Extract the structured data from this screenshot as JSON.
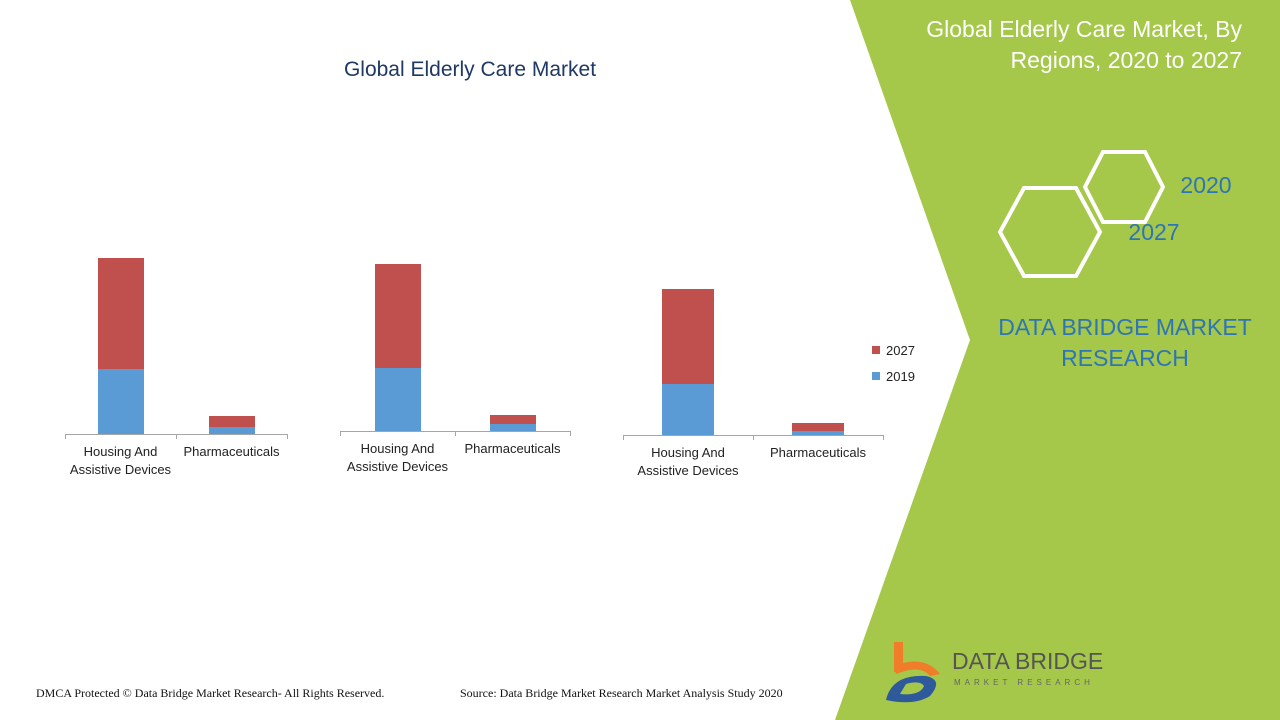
{
  "header": {
    "title": "Global Elderly Care Market",
    "side_title": "Global Elderly Care Market, By Regions, 2020 to 2027",
    "hex_2020": "2020",
    "hex_2027": "2027",
    "brand": "DATA BRIDGE MARKET RESEARCH"
  },
  "footer": {
    "copyright": "DMCA Protected © Data Bridge Market Research- All Rights Reserved.",
    "source": "Source: Data Bridge Market Research Market Analysis Study 2020"
  },
  "logo": {
    "name": "DATA BRIDGE",
    "tagline": "MARKET RESEARCH"
  },
  "colors": {
    "c2019": "#5b9bd5",
    "c2027": "#c0504d",
    "green": "#a5c74a"
  },
  "chart_data": [
    {
      "type": "bar",
      "stacked": true,
      "categories": [
        "Housing And Assistive Devices",
        "Pharmaceuticals"
      ],
      "series": [
        {
          "name": "2019",
          "values": [
            65,
            7
          ]
        },
        {
          "name": "2027",
          "values": [
            111,
            11
          ]
        }
      ],
      "ylim": [
        0,
        180
      ]
    },
    {
      "type": "bar",
      "stacked": true,
      "categories": [
        "Housing And Assistive Devices",
        "Pharmaceuticals"
      ],
      "series": [
        {
          "name": "2019",
          "values": [
            63,
            7
          ]
        },
        {
          "name": "2027",
          "values": [
            104,
            9
          ]
        }
      ],
      "ylim": [
        0,
        180
      ]
    },
    {
      "type": "bar",
      "stacked": true,
      "categories": [
        "Housing And Assistive Devices",
        "Pharmaceuticals"
      ],
      "series": [
        {
          "name": "2019",
          "values": [
            51,
            4
          ]
        },
        {
          "name": "2027",
          "values": [
            95,
            8
          ]
        }
      ],
      "ylim": [
        0,
        180
      ]
    }
  ],
  "legend": [
    "2027",
    "2019"
  ]
}
